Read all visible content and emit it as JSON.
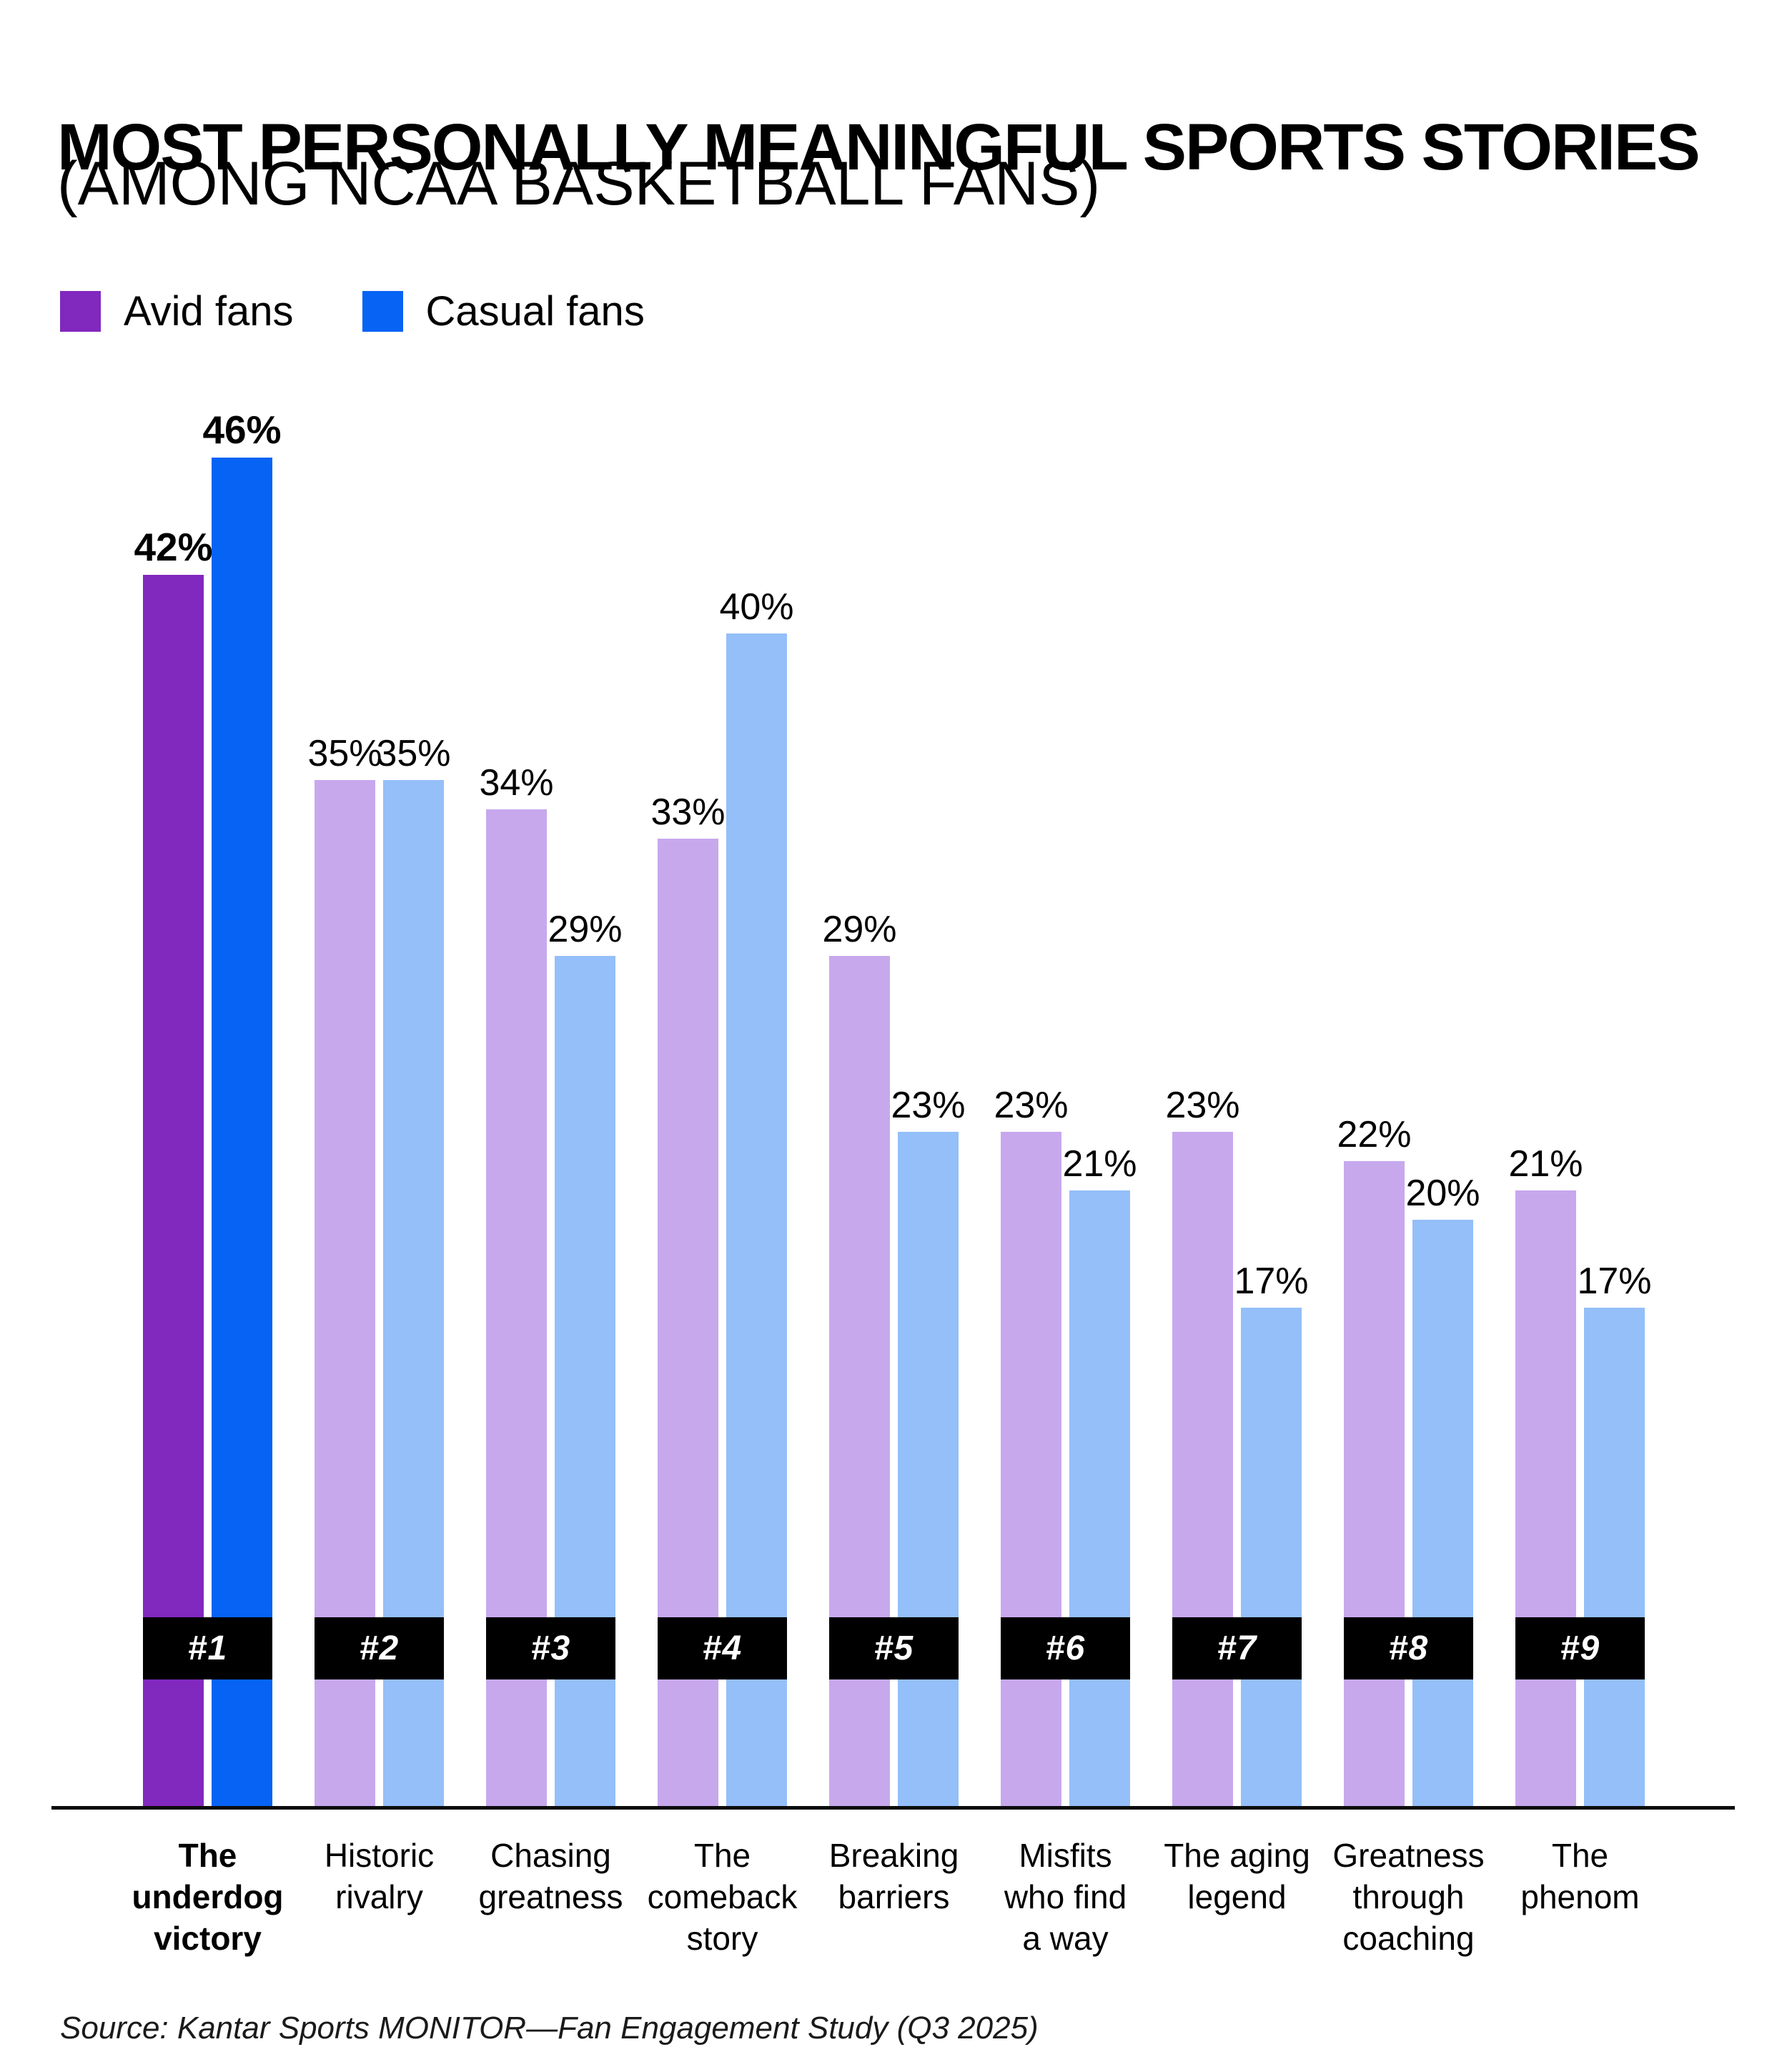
{
  "header": {
    "title": "MOST PERSONALLY MEANINGFUL SPORTS STORIES",
    "subtitle": "(AMONG NCAA BASKETBALL FANS)"
  },
  "legend": {
    "items": [
      {
        "label": "Avid fans",
        "color": "#8128BE"
      },
      {
        "label": "Casual fans",
        "color": "#0763F4"
      }
    ]
  },
  "colors": {
    "avid_emphasis": "#8128BE",
    "casual_emphasis": "#0763F4",
    "avid_light": "#C7A8ED",
    "casual_light": "#94BFF9",
    "badge_bg": "#000000",
    "badge_text": "#FFFFFF",
    "axis_line": "#0A0A0A"
  },
  "source": "Source: Kantar Sports MONITOR—Fan Engagement Study (Q3 2025)",
  "chart_data": {
    "type": "bar",
    "title": "MOST PERSONALLY MEANINGFUL SPORTS STORIES (AMONG NCAA BASKETBALL FANS)",
    "xlabel": "",
    "ylabel": "",
    "ylim": [
      0,
      50
    ],
    "grid": false,
    "legend_position": "top-left",
    "value_suffix": "%",
    "emphasized_category": 0,
    "categories": [
      "The underdog victory",
      "Historic rivalry",
      "Chasing greatness",
      "The comeback story",
      "Breaking barriers",
      "Misfits who find a way",
      "The aging legend",
      "Greatness through coaching",
      "The phenom"
    ],
    "category_label_lines": [
      [
        "The",
        "underdog",
        "victory"
      ],
      [
        "Historic",
        "rivalry"
      ],
      [
        "Chasing",
        "greatness"
      ],
      [
        "The",
        "comeback",
        "story"
      ],
      [
        "Breaking",
        "barriers"
      ],
      [
        "Misfits",
        "who find",
        "a way"
      ],
      [
        "The aging",
        "legend"
      ],
      [
        "Greatness",
        "through",
        "coaching"
      ],
      [
        "The",
        "phenom"
      ]
    ],
    "ranks": [
      "#1",
      "#2",
      "#3",
      "#4",
      "#5",
      "#6",
      "#7",
      "#8",
      "#9"
    ],
    "series": [
      {
        "name": "Avid fans",
        "values": [
          42,
          35,
          34,
          33,
          29,
          23,
          23,
          22,
          21
        ]
      },
      {
        "name": "Casual fans",
        "values": [
          46,
          35,
          29,
          40,
          23,
          21,
          17,
          20,
          17
        ]
      }
    ]
  }
}
